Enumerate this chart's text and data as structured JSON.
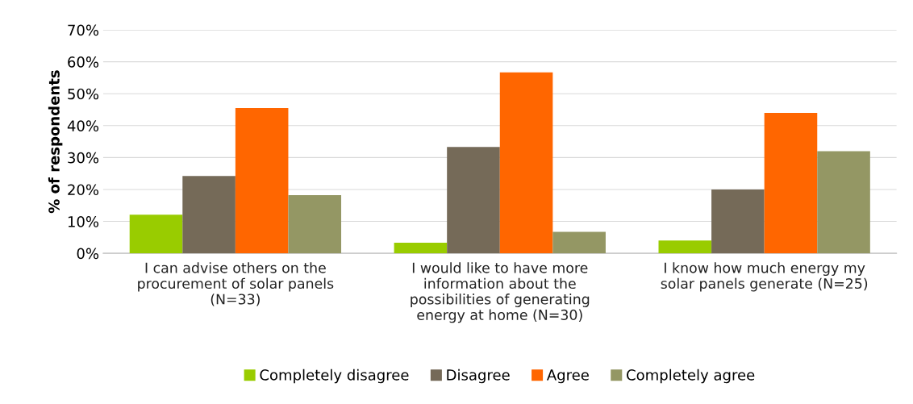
{
  "chart_data": {
    "type": "bar",
    "ylabel": "% of respondents",
    "categories": [
      "I can advise others on the\nprocurement of solar panels\n(N=33)",
      "I would like to have more\ninformation about the\npossibilities of generating\nenergy at home (N=30)",
      "I know how much energy my\nsolar panels generate (N=25)"
    ],
    "series": [
      {
        "name": "Completely disagree",
        "color": "#99cc00",
        "values": [
          12.1,
          3.3,
          4.0
        ]
      },
      {
        "name": "Disagree",
        "color": "#756a58",
        "values": [
          24.2,
          33.3,
          20.0
        ]
      },
      {
        "name": "Agree",
        "color": "#ff6600",
        "values": [
          45.5,
          56.7,
          44.0
        ]
      },
      {
        "name": "Completely agree",
        "color": "#949764",
        "values": [
          18.2,
          6.7,
          32.0
        ]
      }
    ],
    "ylim": [
      0,
      70
    ],
    "yticks": [
      {
        "value": 0,
        "label": "0%"
      },
      {
        "value": 10,
        "label": "10%"
      },
      {
        "value": 20,
        "label": "20%"
      },
      {
        "value": 30,
        "label": "30%"
      },
      {
        "value": 40,
        "label": "40%"
      },
      {
        "value": 50,
        "label": "50%"
      },
      {
        "value": 60,
        "label": "60%"
      },
      {
        "value": 70,
        "label": "70%"
      }
    ],
    "grid": "y",
    "legend": "bottom"
  }
}
